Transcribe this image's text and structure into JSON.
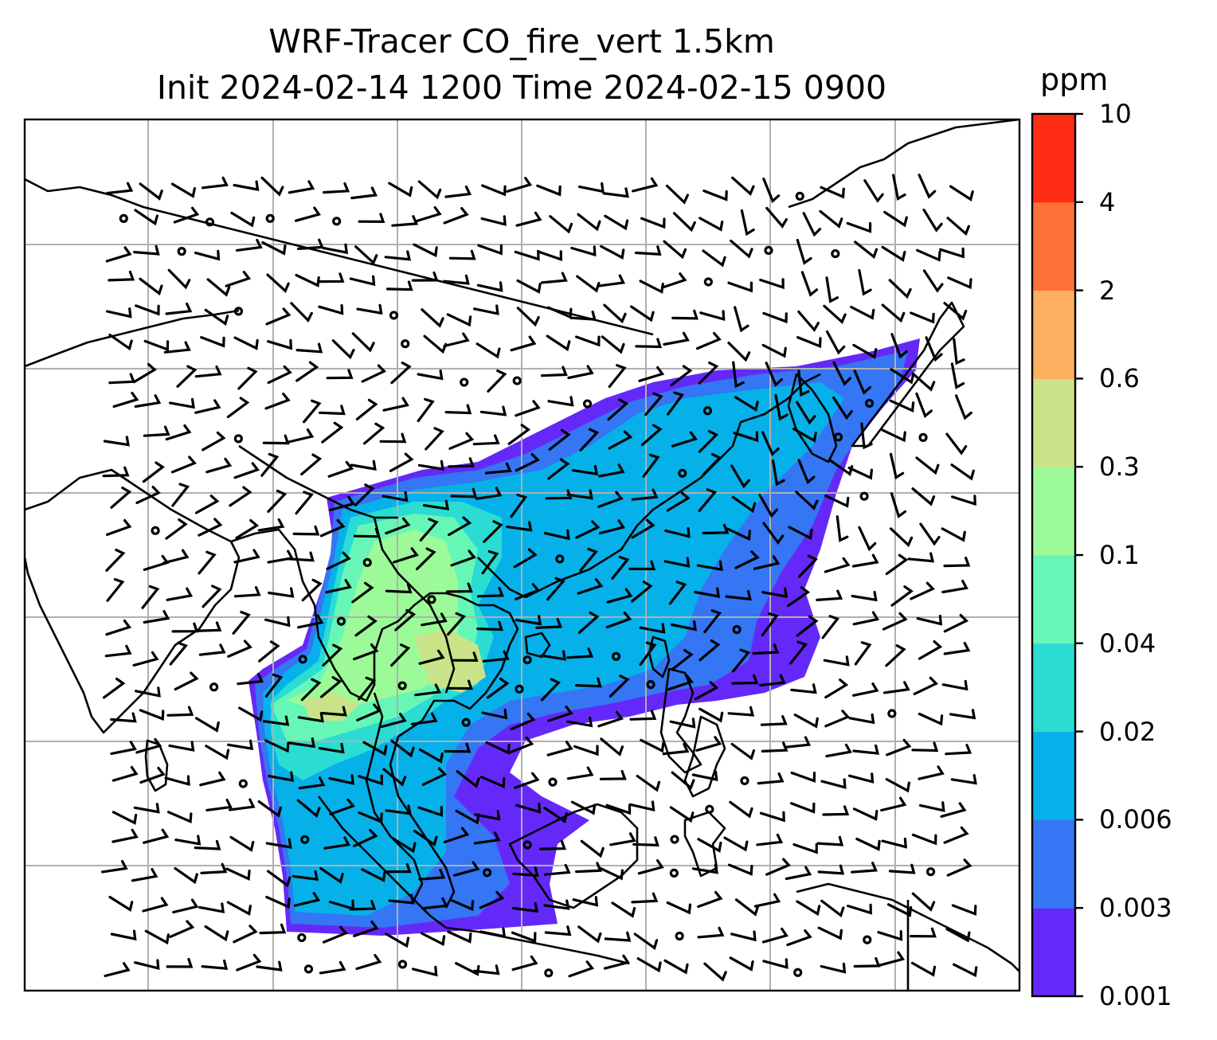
{
  "title": {
    "line1": "WRF-Tracer CO_fire_vert 1.5km",
    "line2": "Init 2024-02-14 1200 Time 2024-02-15 0900"
  },
  "colorbar": {
    "unit": "ppm",
    "levels": [
      "0.001",
      "0.003",
      "0.006",
      "0.02",
      "0.04",
      "0.1",
      "0.3",
      "0.6",
      "2",
      "4",
      "10"
    ],
    "colors": [
      "#6429f8",
      "#3476f3",
      "#06b1ea",
      "#2bdcd2",
      "#66f7b7",
      "#9cfa99",
      "#cbe388",
      "#feaf60",
      "#ff7136",
      "#ff2c16"
    ]
  },
  "map": {
    "gridlines": true,
    "features": [
      "coastlines",
      "country-borders",
      "wind-barbs",
      "co-concentration-fill"
    ]
  }
}
